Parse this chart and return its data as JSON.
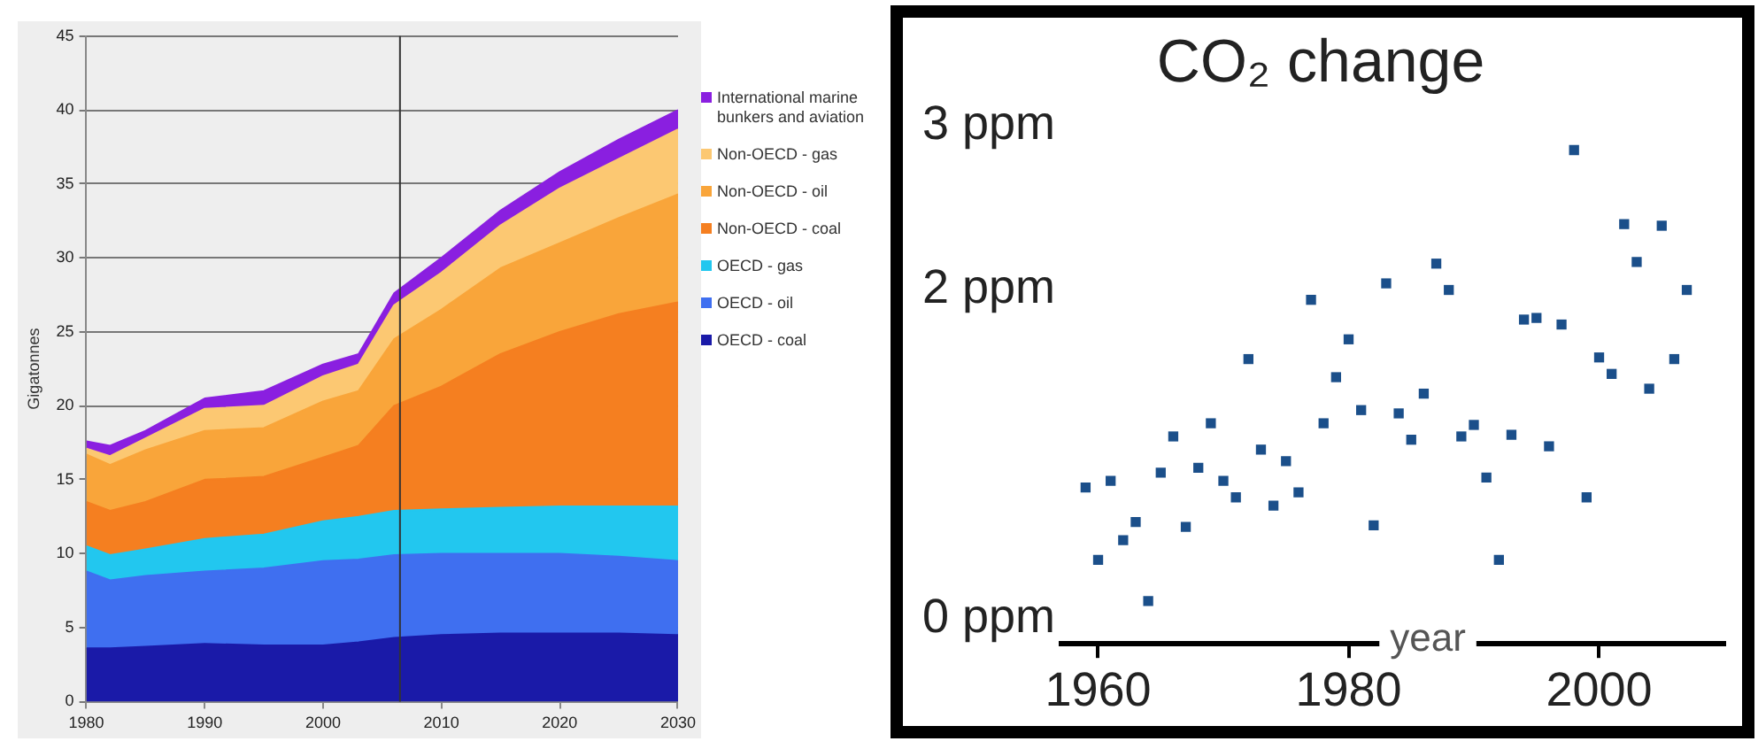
{
  "chart_data": [
    {
      "type": "area",
      "stacked": true,
      "ylabel": "Gigatonnes",
      "x": [
        1980,
        1982,
        1985,
        1990,
        1995,
        2000,
        2003,
        2006,
        2010,
        2015,
        2020,
        2025,
        2030
      ],
      "series": [
        {
          "name": "OECD - coal",
          "color": "#1a1aa8",
          "values": [
            3.6,
            3.6,
            3.7,
            3.9,
            3.8,
            3.8,
            4.0,
            4.3,
            4.5,
            4.6,
            4.6,
            4.6,
            4.5
          ]
        },
        {
          "name": "OECD - oil",
          "color": "#3f6ff0",
          "values": [
            5.2,
            4.6,
            4.8,
            4.9,
            5.2,
            5.7,
            5.6,
            5.6,
            5.5,
            5.4,
            5.4,
            5.2,
            5.0
          ]
        },
        {
          "name": "OECD - gas",
          "color": "#22c7ef",
          "values": [
            1.7,
            1.7,
            1.8,
            2.2,
            2.3,
            2.7,
            2.9,
            3.0,
            3.0,
            3.1,
            3.2,
            3.4,
            3.7
          ]
        },
        {
          "name": "Non-OECD - coal",
          "color": "#f57f20",
          "values": [
            3.0,
            3.0,
            3.2,
            4.0,
            3.9,
            4.3,
            4.8,
            7.1,
            8.3,
            10.4,
            11.8,
            13.0,
            13.8
          ]
        },
        {
          "name": "Non-OECD - oil",
          "color": "#f9a53a",
          "values": [
            3.2,
            3.1,
            3.5,
            3.3,
            3.3,
            3.8,
            3.7,
            4.5,
            5.2,
            5.8,
            6.0,
            6.5,
            7.3
          ]
        },
        {
          "name": "Non-OECD - gas",
          "color": "#fcc872",
          "values": [
            0.4,
            0.6,
            0.8,
            1.5,
            1.5,
            1.7,
            1.8,
            2.3,
            2.5,
            2.9,
            3.7,
            4.0,
            4.4
          ]
        },
        {
          "name": "International marine bunkers and aviation",
          "color": "#8a1fe0",
          "values": [
            0.5,
            0.7,
            0.5,
            0.7,
            1.0,
            0.8,
            0.7,
            0.8,
            1.0,
            1.0,
            1.1,
            1.3,
            1.3
          ]
        }
      ],
      "xlim": [
        1980,
        2030
      ],
      "xticks": [
        1980,
        1990,
        2000,
        2010,
        2020,
        2030
      ],
      "ylim": [
        0,
        45
      ],
      "yticks": [
        0,
        5,
        10,
        15,
        20,
        25,
        30,
        35,
        40,
        45
      ],
      "grid": "y",
      "legend": "right",
      "ref_lines": [
        {
          "axis": "x",
          "value": 2006.5,
          "color": "#333333"
        }
      ]
    },
    {
      "type": "scatter",
      "title": "CO₂ change",
      "xlabel": "year",
      "x": [
        1959,
        1960,
        1961,
        1962,
        1963,
        1964,
        1965,
        1966,
        1967,
        1968,
        1969,
        1970,
        1971,
        1972,
        1973,
        1974,
        1975,
        1976,
        1977,
        1978,
        1979,
        1980,
        1981,
        1982,
        1983,
        1984,
        1985,
        1986,
        1987,
        1988,
        1989,
        1990,
        1991,
        1992,
        1993,
        1994,
        1995,
        1996,
        1997,
        1998,
        1999,
        2000,
        2001,
        2002,
        2003,
        2004,
        2005,
        2006,
        2007
      ],
      "values": [
        0.8,
        0.36,
        0.84,
        0.48,
        0.59,
        0.11,
        0.89,
        1.11,
        0.56,
        0.92,
        1.19,
        0.84,
        0.74,
        1.58,
        1.03,
        0.69,
        0.96,
        0.77,
        1.94,
        1.19,
        1.47,
        1.7,
        1.27,
        0.57,
        2.04,
        1.25,
        1.09,
        1.37,
        2.16,
        2.0,
        1.11,
        1.18,
        0.86,
        0.36,
        1.12,
        1.82,
        1.83,
        1.05,
        1.79,
        2.85,
        0.74,
        1.59,
        1.49,
        2.4,
        2.17,
        1.4,
        2.39,
        1.58,
        2.0
      ],
      "color": "#1b4f8a",
      "marker": "square",
      "xlim": [
        1957,
        2010
      ],
      "xticks": [
        1960,
        1980,
        2000
      ],
      "ylim": [
        -0.15,
        3
      ],
      "yticks": [
        {
          "value": 0,
          "label": "0 ppm"
        },
        {
          "value": 2,
          "label": "2 ppm"
        },
        {
          "value": 3,
          "label": "3 ppm"
        }
      ],
      "grid": false,
      "legend": false
    }
  ]
}
